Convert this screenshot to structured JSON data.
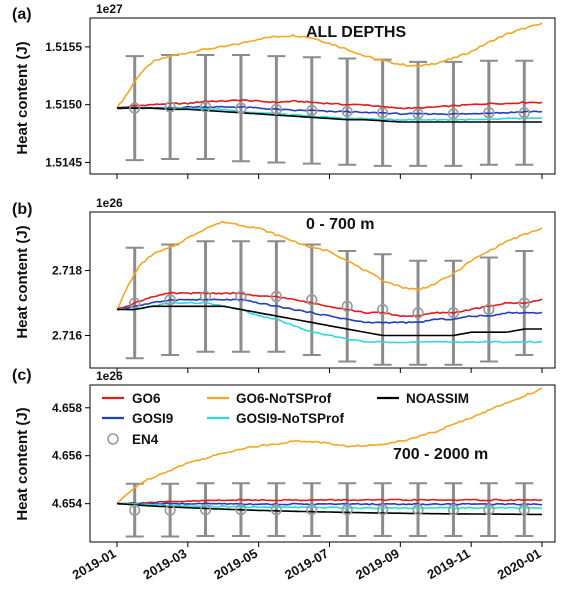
{
  "chart_data": [
    {
      "type": "line",
      "panel": "(a)",
      "title": "ALL DEPTHS",
      "ylabel": "Heat content (J)",
      "multiplier": "1e27",
      "yticks": [
        1.5145,
        1.515,
        1.5155
      ],
      "ylim": [
        1.5144,
        1.51575
      ],
      "xlim": [
        0,
        12
      ],
      "series": [
        {
          "name": "GO6-NoTSProf",
          "color": "#F5A623",
          "x": [
            0,
            0.3,
            0.6,
            1,
            1.5,
            2,
            2.5,
            3,
            3.5,
            4,
            4.5,
            5,
            5.5,
            6,
            6.5,
            7,
            7.5,
            8,
            8.5,
            9,
            9.5,
            10,
            10.5,
            11,
            11.5,
            12
          ],
          "y": [
            1.51497,
            1.5151,
            1.51525,
            1.51537,
            1.51542,
            1.51545,
            1.51548,
            1.5155,
            1.51553,
            1.51557,
            1.51559,
            1.5156,
            1.51558,
            1.51553,
            1.51548,
            1.51542,
            1.51538,
            1.51535,
            1.51533,
            1.51536,
            1.5154,
            1.51546,
            1.51554,
            1.51561,
            1.51566,
            1.5157
          ]
        },
        {
          "name": "GO6",
          "color": "#E41A1C",
          "x": [
            0,
            0.5,
            1,
            1.5,
            2,
            2.5,
            3,
            3.5,
            4,
            4.5,
            5,
            5.5,
            6,
            6.5,
            7,
            7.5,
            8,
            8.5,
            9,
            9.5,
            10,
            10.5,
            11,
            11.5,
            12
          ],
          "y": [
            1.51497,
            1.51499,
            1.515,
            1.51501,
            1.51501,
            1.51503,
            1.51503,
            1.51504,
            1.51503,
            1.51502,
            1.51503,
            1.51502,
            1.51501,
            1.515,
            1.515,
            1.51498,
            1.51497,
            1.51497,
            1.51498,
            1.51499,
            1.515,
            1.51501,
            1.51501,
            1.51502,
            1.51502
          ]
        },
        {
          "name": "GOSI9",
          "color": "#1F3FBF",
          "x": [
            0,
            0.5,
            1,
            1.5,
            2,
            2.5,
            3,
            3.5,
            4,
            4.5,
            5,
            5.5,
            6,
            6.5,
            7,
            7.5,
            8,
            8.5,
            9,
            9.5,
            10,
            10.5,
            11,
            11.5,
            12
          ],
          "y": [
            1.51497,
            1.51497,
            1.51497,
            1.51497,
            1.51498,
            1.51498,
            1.51498,
            1.51498,
            1.51497,
            1.51496,
            1.51495,
            1.51495,
            1.51494,
            1.51494,
            1.51493,
            1.51493,
            1.51492,
            1.51492,
            1.51492,
            1.51492,
            1.51492,
            1.51493,
            1.51493,
            1.51494,
            1.51494
          ]
        },
        {
          "name": "GOSI9-NoTSProf",
          "color": "#2ED8D8",
          "x": [
            0,
            0.5,
            1,
            1.5,
            2,
            2.5,
            3,
            3.5,
            4,
            4.5,
            5,
            5.5,
            6,
            6.5,
            7,
            7.5,
            8,
            8.5,
            9,
            9.5,
            10,
            10.5,
            11,
            11.5,
            12
          ],
          "y": [
            1.51497,
            1.51497,
            1.51497,
            1.51497,
            1.51497,
            1.51496,
            1.51496,
            1.51494,
            1.51493,
            1.51492,
            1.51491,
            1.5149,
            1.51489,
            1.51488,
            1.51488,
            1.51487,
            1.51487,
            1.51487,
            1.51487,
            1.51487,
            1.51487,
            1.51487,
            1.51488,
            1.51488,
            1.51488
          ]
        },
        {
          "name": "NOASSIM",
          "color": "#000000",
          "x": [
            0,
            0.5,
            1,
            1.5,
            2,
            2.5,
            3,
            3.5,
            4,
            4.5,
            5,
            5.5,
            6,
            6.5,
            7,
            7.5,
            8,
            8.5,
            9,
            9.5,
            10,
            10.5,
            11,
            11.5,
            12
          ],
          "y": [
            1.51497,
            1.51497,
            1.51497,
            1.51496,
            1.51496,
            1.51495,
            1.51494,
            1.51493,
            1.51492,
            1.51491,
            1.5149,
            1.51489,
            1.51488,
            1.51487,
            1.51487,
            1.51486,
            1.51485,
            1.51485,
            1.51485,
            1.51485,
            1.51485,
            1.51485,
            1.51485,
            1.51485,
            1.51485
          ]
        }
      ],
      "en4": {
        "name": "EN4",
        "x": [
          0.5,
          1.5,
          2.5,
          3.5,
          4.5,
          5.5,
          6.5,
          7.5,
          8.5,
          9.5,
          10.5,
          11.5
        ],
        "y": [
          1.51497,
          1.51498,
          1.51498,
          1.51497,
          1.51496,
          1.51495,
          1.51494,
          1.51493,
          1.51492,
          1.51492,
          1.51493,
          1.51493
        ],
        "err": [
          0.00045,
          0.00045,
          0.00045,
          0.00046,
          0.00046,
          0.00046,
          0.00046,
          0.00046,
          0.00045,
          0.00045,
          0.00045,
          0.00045
        ]
      }
    },
    {
      "type": "line",
      "panel": "(b)",
      "title": "0 - 700 m",
      "ylabel": "Heat content (J)",
      "multiplier": "1e26",
      "yticks": [
        2.716,
        2.718
      ],
      "ylim": [
        2.715,
        2.7198
      ],
      "xlim": [
        0,
        12
      ],
      "series": [
        {
          "name": "GO6-NoTSProf",
          "color": "#F5A623",
          "x": [
            0,
            0.3,
            0.6,
            1,
            1.5,
            2,
            2.5,
            3,
            3.5,
            4,
            4.5,
            5,
            5.5,
            6,
            6.5,
            7,
            7.5,
            8,
            8.5,
            9,
            9.5,
            10,
            10.5,
            11,
            11.5,
            12
          ],
          "y": [
            2.7168,
            2.7175,
            2.7181,
            2.7185,
            2.7187,
            2.719,
            2.7193,
            2.7195,
            2.7194,
            2.7193,
            2.7191,
            2.7189,
            2.7187,
            2.7186,
            2.7183,
            2.718,
            2.7177,
            2.7175,
            2.7174,
            2.7176,
            2.7179,
            2.7183,
            2.7186,
            2.7189,
            2.7191,
            2.7193
          ]
        },
        {
          "name": "GO6",
          "color": "#E41A1C",
          "x": [
            0,
            0.5,
            1,
            1.5,
            2,
            2.5,
            3,
            3.5,
            4,
            4.5,
            5,
            5.5,
            6,
            6.5,
            7,
            7.5,
            8,
            8.5,
            9,
            9.5,
            10,
            10.5,
            11,
            11.5,
            12
          ],
          "y": [
            2.7168,
            2.717,
            2.7172,
            2.7173,
            2.7173,
            2.7173,
            2.7173,
            2.7173,
            2.7172,
            2.7172,
            2.7171,
            2.717,
            2.7169,
            2.7168,
            2.7167,
            2.7167,
            2.7166,
            2.7166,
            2.7167,
            2.7167,
            2.7168,
            2.7169,
            2.717,
            2.717,
            2.7171
          ]
        },
        {
          "name": "GOSI9",
          "color": "#1F3FBF",
          "x": [
            0,
            0.5,
            1,
            1.5,
            2,
            2.5,
            3,
            3.5,
            4,
            4.5,
            5,
            5.5,
            6,
            6.5,
            7,
            7.5,
            8,
            8.5,
            9,
            9.5,
            10,
            10.5,
            11,
            11.5,
            12
          ],
          "y": [
            2.7168,
            2.7169,
            2.717,
            2.7171,
            2.7171,
            2.7171,
            2.7171,
            2.7171,
            2.717,
            2.7169,
            2.7168,
            2.7167,
            2.7166,
            2.7165,
            2.7164,
            2.7164,
            2.7164,
            2.7164,
            2.7165,
            2.7165,
            2.7166,
            2.7166,
            2.7167,
            2.7167,
            2.7167
          ]
        },
        {
          "name": "GOSI9-NoTSProf",
          "color": "#2ED8D8",
          "x": [
            0,
            0.5,
            1,
            1.5,
            2,
            2.5,
            3,
            3.5,
            4,
            4.5,
            5,
            5.5,
            6,
            6.5,
            7,
            7.5,
            8,
            8.5,
            9,
            9.5,
            10,
            10.5,
            11,
            11.5,
            12
          ],
          "y": [
            2.7168,
            2.7168,
            2.7169,
            2.717,
            2.717,
            2.717,
            2.7169,
            2.7168,
            2.7166,
            2.7165,
            2.7163,
            2.7161,
            2.716,
            2.7159,
            2.7158,
            2.7158,
            2.7158,
            2.7158,
            2.7158,
            2.7158,
            2.7158,
            2.7158,
            2.7158,
            2.7158,
            2.7158
          ]
        },
        {
          "name": "NOASSIM",
          "color": "#000000",
          "x": [
            0,
            0.5,
            1,
            1.5,
            2,
            2.5,
            3,
            3.5,
            4,
            4.5,
            5,
            5.5,
            6,
            6.5,
            7,
            7.5,
            8,
            8.5,
            9,
            9.5,
            10,
            10.5,
            11,
            11.5,
            12
          ],
          "y": [
            2.7168,
            2.7168,
            2.7169,
            2.7169,
            2.7169,
            2.7169,
            2.7169,
            2.7168,
            2.7167,
            2.7166,
            2.7165,
            2.7164,
            2.7163,
            2.7162,
            2.7161,
            2.716,
            2.716,
            2.716,
            2.716,
            2.716,
            2.7161,
            2.7161,
            2.7161,
            2.7162,
            2.7162
          ]
        }
      ],
      "en4": {
        "name": "EN4",
        "x": [
          0.5,
          1.5,
          2.5,
          3.5,
          4.5,
          5.5,
          6.5,
          7.5,
          8.5,
          9.5,
          10.5,
          11.5
        ],
        "y": [
          2.717,
          2.7171,
          2.7172,
          2.7172,
          2.7172,
          2.7171,
          2.7169,
          2.7168,
          2.7167,
          2.7167,
          2.7168,
          2.717
        ],
        "err": [
          0.0017,
          0.0017,
          0.0017,
          0.0017,
          0.0017,
          0.0017,
          0.0017,
          0.0017,
          0.0016,
          0.0016,
          0.0016,
          0.0016
        ]
      }
    },
    {
      "type": "line",
      "panel": "(c)",
      "title": "700 - 2000 m",
      "ylabel": "Heat content (J)",
      "multiplier": "1e26",
      "yticks": [
        4.654,
        4.656,
        4.658
      ],
      "ylim": [
        4.6524,
        4.65895
      ],
      "xlim": [
        0,
        12
      ],
      "xticks": [
        "2019-01",
        "2019-03",
        "2019-05",
        "2019-07",
        "2019-09",
        "2019-11",
        "2020-01"
      ],
      "series": [
        {
          "name": "GO6-NoTSProf",
          "color": "#F5A623",
          "x": [
            0,
            0.3,
            0.6,
            1,
            1.5,
            2,
            2.5,
            3,
            3.5,
            4,
            4.5,
            5,
            5.5,
            6,
            6.5,
            7,
            7.5,
            8,
            8.5,
            9,
            9.5,
            10,
            10.5,
            11,
            11.5,
            12
          ],
          "y": [
            4.654,
            4.6544,
            4.6548,
            4.6551,
            4.6554,
            4.6557,
            4.6559,
            4.6561,
            4.6563,
            4.6564,
            4.6565,
            4.6566,
            4.6566,
            4.6565,
            4.6564,
            4.6564,
            4.6565,
            4.6566,
            4.6568,
            4.657,
            4.6573,
            4.6576,
            4.6579,
            4.6582,
            4.6585,
            4.6588
          ]
        },
        {
          "name": "GO6",
          "color": "#E41A1C",
          "x": [
            0,
            1,
            2,
            3,
            4,
            5,
            6,
            7,
            8,
            9,
            10,
            11,
            12
          ],
          "y": [
            4.654,
            4.65405,
            4.6541,
            4.65415,
            4.65415,
            4.65415,
            4.65415,
            4.65415,
            4.65415,
            4.65415,
            4.65415,
            4.65415,
            4.65415
          ]
        },
        {
          "name": "GOSI9",
          "color": "#1F3FBF",
          "x": [
            0,
            1,
            2,
            3,
            4,
            5,
            6,
            7,
            8,
            9,
            10,
            11,
            12
          ],
          "y": [
            4.654,
            4.654,
            4.654,
            4.654,
            4.65398,
            4.65398,
            4.65398,
            4.65398,
            4.65398,
            4.65398,
            4.65398,
            4.65398,
            4.65398
          ]
        },
        {
          "name": "GOSI9-NoTSProf",
          "color": "#2ED8D8",
          "x": [
            0,
            1,
            2,
            3,
            4,
            5,
            6,
            7,
            8,
            9,
            10,
            11,
            12
          ],
          "y": [
            4.654,
            4.65395,
            4.6539,
            4.65388,
            4.65385,
            4.65385,
            4.65383,
            4.65382,
            4.65382,
            4.65382,
            4.65382,
            4.65382,
            4.65382
          ]
        },
        {
          "name": "NOASSIM",
          "color": "#000000",
          "x": [
            0,
            1,
            2,
            3,
            4,
            5,
            6,
            7,
            8,
            9,
            10,
            11,
            12
          ],
          "y": [
            4.654,
            4.6539,
            4.65383,
            4.65377,
            4.65372,
            4.65368,
            4.65365,
            4.65362,
            4.6536,
            4.65358,
            4.65357,
            4.65356,
            4.65355
          ]
        }
      ],
      "en4": {
        "name": "EN4",
        "x": [
          0.5,
          1.5,
          2.5,
          3.5,
          4.5,
          5.5,
          6.5,
          7.5,
          8.5,
          9.5,
          10.5,
          11.5
        ],
        "y": [
          4.65373,
          4.65373,
          4.65375,
          4.65375,
          4.65375,
          4.65375,
          4.65375,
          4.65375,
          4.65375,
          4.65375,
          4.65375,
          4.65375
        ],
        "err": [
          0.0011,
          0.0011,
          0.0011,
          0.0011,
          0.0011,
          0.0011,
          0.0011,
          0.0011,
          0.0011,
          0.0011,
          0.0011,
          0.0011
        ]
      }
    }
  ],
  "legend": {
    "entries": [
      {
        "label": "GO6",
        "color": "#E41A1C",
        "kind": "line"
      },
      {
        "label": "GOSI9",
        "color": "#1F3FBF",
        "kind": "line"
      },
      {
        "label": "EN4",
        "color": "#9A9A9A",
        "kind": "circle"
      },
      {
        "label": "GO6-NoTSProf",
        "color": "#F5A623",
        "kind": "line"
      },
      {
        "label": "GOSI9-NoTSProf",
        "color": "#2ED8D8",
        "kind": "line"
      },
      {
        "label": "NOASSIM",
        "color": "#000000",
        "kind": "line"
      }
    ],
    "placement": "top-left of panel (c)"
  }
}
